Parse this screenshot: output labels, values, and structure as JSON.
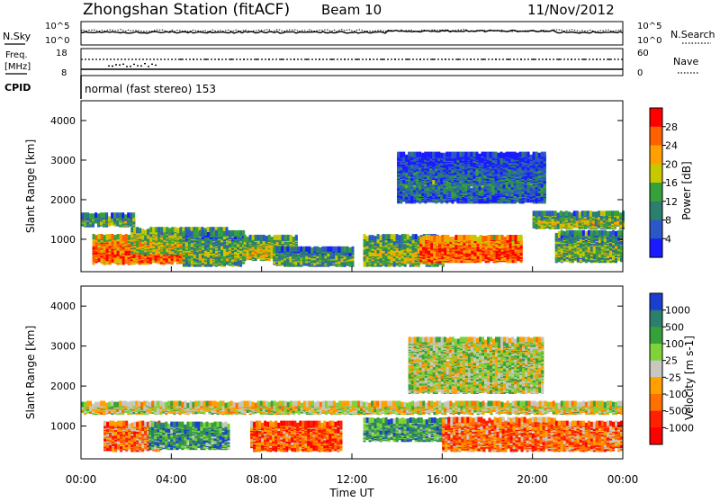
{
  "header": {
    "title": "Zhongshan Station (fitACF)",
    "beam": "Beam 10",
    "date": "11/Nov/2012"
  },
  "noise_panel": {
    "left_label": "N.Sky",
    "right_label": "N.Search",
    "left_ticks": [
      "10^5",
      "10^0"
    ],
    "right_ticks": [
      "10^5",
      "10^0"
    ]
  },
  "freq_panel": {
    "left_label_top": "Freq.",
    "left_label_bottom": "[MHz]",
    "right_label": "Nave",
    "left_ticks": [
      "18",
      "8"
    ],
    "right_ticks": [
      "60",
      "0"
    ],
    "cpid_label": "CPID",
    "cpid_text": "normal (fast stereo) 153"
  },
  "chart_data": [
    {
      "type": "heatmap",
      "quantity": "power",
      "ylabel": "Slant Range [km]",
      "xlabel": "",
      "y_ticks": [
        "1000",
        "2000",
        "3000",
        "4000"
      ],
      "ylim": [
        180,
        4500
      ],
      "colorbar_label": "Power [dB]",
      "colorbar_ticks": [
        "4",
        "8",
        "12",
        "16",
        "20",
        "24",
        "28"
      ],
      "colorbar_colors": [
        "#1a1aff",
        "#2b58c7",
        "#2a7f6f",
        "#36a13a",
        "#c8c800",
        "#ff9f00",
        "#ff6000",
        "#ff0000"
      ],
      "regions": [
        {
          "t0": 0.0,
          "t1": 2.4,
          "r0": 1300,
          "r1": 1550,
          "level": 0.45
        },
        {
          "t0": 0.5,
          "t1": 4.5,
          "r0": 350,
          "r1": 1000,
          "level": 0.85
        },
        {
          "t0": 2.2,
          "t1": 6.5,
          "r0": 600,
          "r1": 1200,
          "level": 0.6
        },
        {
          "t0": 4.5,
          "t1": 7.2,
          "r0": 300,
          "r1": 1100,
          "level": 0.5
        },
        {
          "t0": 7.2,
          "t1": 9.5,
          "r0": 450,
          "r1": 1000,
          "level": 0.6
        },
        {
          "t0": 8.5,
          "t1": 12.0,
          "r0": 300,
          "r1": 700,
          "level": 0.45
        },
        {
          "t0": 12.5,
          "t1": 16.0,
          "r0": 300,
          "r1": 1000,
          "level": 0.55
        },
        {
          "t0": 14.0,
          "t1": 20.5,
          "r0": 1900,
          "r1": 3100,
          "level": 0.3
        },
        {
          "t0": 15.0,
          "t1": 19.5,
          "r0": 400,
          "r1": 1000,
          "level": 0.9
        },
        {
          "t0": 20.0,
          "t1": 24.0,
          "r0": 1250,
          "r1": 1600,
          "level": 0.55
        },
        {
          "t0": 21.0,
          "t1": 24.0,
          "r0": 400,
          "r1": 1100,
          "level": 0.5
        }
      ]
    },
    {
      "type": "heatmap",
      "quantity": "velocity",
      "ylabel": "Slant Range [km]",
      "xlabel": "Time UT",
      "y_ticks": [
        "1000",
        "2000",
        "3000",
        "4000"
      ],
      "x_ticks": [
        "00:00",
        "04:00",
        "08:00",
        "12:00",
        "16:00",
        "20:00",
        "00:00"
      ],
      "xlim": [
        0,
        24
      ],
      "ylim": [
        180,
        4500
      ],
      "colorbar_label": "Velocity [m s-1]",
      "colorbar_ticks": [
        "1000",
        "500",
        "100",
        "25",
        "-25",
        "-100",
        "-500",
        "-1000"
      ],
      "colorbar_colors": [
        "#1a3fd0",
        "#2a7f6f",
        "#36a13a",
        "#7fd23a",
        "#c8c8c0",
        "#ffa000",
        "#ff7000",
        "#ff2000",
        "#ff0000"
      ],
      "regions": [
        {
          "t0": 0.0,
          "t1": 24.0,
          "r0": 1280,
          "r1": 1500,
          "level": 0.5
        },
        {
          "t0": 1.0,
          "t1": 3.5,
          "r0": 350,
          "r1": 1000,
          "level": 0.3
        },
        {
          "t0": 3.0,
          "t1": 6.5,
          "r0": 400,
          "r1": 1000,
          "level": 0.75
        },
        {
          "t0": 7.5,
          "t1": 11.5,
          "r0": 350,
          "r1": 1000,
          "level": 0.25
        },
        {
          "t0": 12.5,
          "t1": 16.5,
          "r0": 600,
          "r1": 1100,
          "level": 0.75
        },
        {
          "t0": 14.5,
          "t1": 20.5,
          "r0": 1800,
          "r1": 3100,
          "level": 0.55
        },
        {
          "t0": 16.0,
          "t1": 21.0,
          "r0": 350,
          "r1": 1100,
          "level": 0.3
        },
        {
          "t0": 21.0,
          "t1": 24.0,
          "r0": 350,
          "r1": 1000,
          "level": 0.3
        }
      ]
    }
  ]
}
